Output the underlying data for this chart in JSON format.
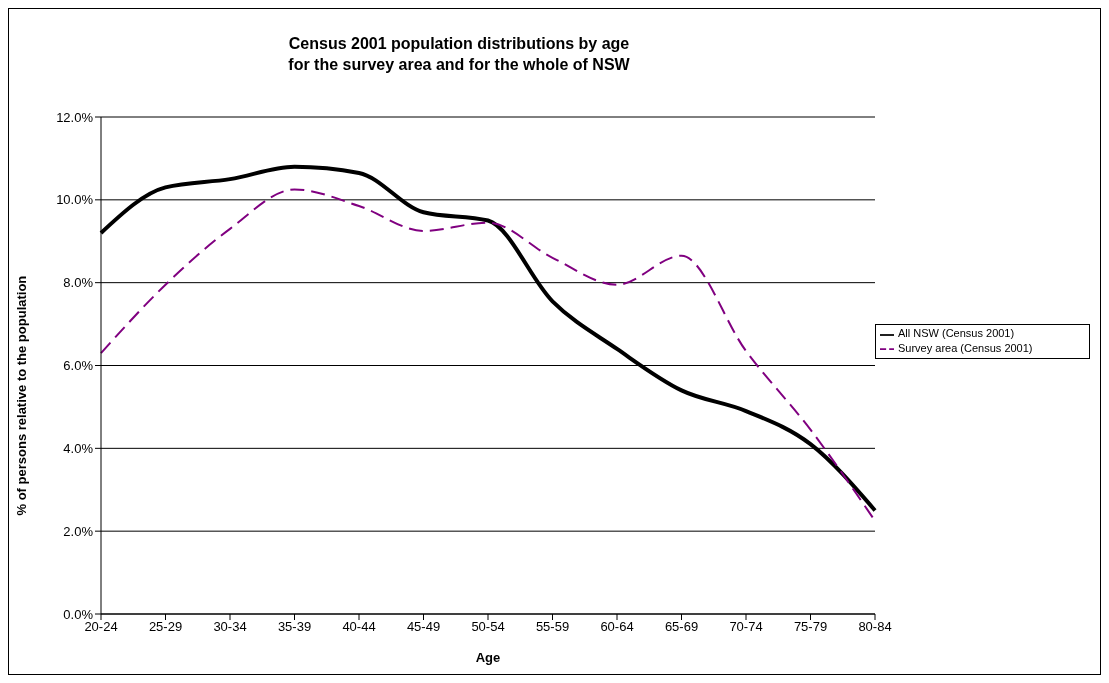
{
  "chart_data": {
    "type": "line",
    "title": "Census 2001 population distributions by age\nfor the survey area and for the whole of NSW",
    "xlabel": "Age",
    "ylabel": "% of persons relative to the population",
    "categories": [
      "20-24",
      "25-29",
      "30-34",
      "35-39",
      "40-44",
      "45-49",
      "50-54",
      "55-59",
      "60-64",
      "65-69",
      "70-74",
      "75-79",
      "80-84"
    ],
    "series": [
      {
        "name": "All NSW (Census 2001)",
        "color": "#000000",
        "line_style": "solid",
        "values": [
          9.2,
          10.3,
          10.5,
          10.8,
          10.65,
          9.7,
          9.5,
          7.55,
          6.4,
          5.4,
          4.9,
          4.1,
          2.5
        ]
      },
      {
        "name": "Survey area (Census 2001)",
        "color": "#800080",
        "line_style": "dashed",
        "values": [
          6.3,
          7.95,
          9.3,
          10.25,
          9.85,
          9.25,
          9.45,
          8.6,
          7.95,
          8.65,
          6.35,
          4.45,
          2.25
        ]
      }
    ],
    "ylim": [
      0,
      12
    ],
    "yticks": [
      {
        "value": 0,
        "label": "0.0%"
      },
      {
        "value": 2,
        "label": "2.0%"
      },
      {
        "value": 4,
        "label": "4.0%"
      },
      {
        "value": 6,
        "label": "6.0%"
      },
      {
        "value": 8,
        "label": "8.0%"
      },
      {
        "value": 10,
        "label": "10.0%"
      },
      {
        "value": 12,
        "label": "12.0%"
      }
    ],
    "grid": "y",
    "legend": "right",
    "marker": "none"
  }
}
